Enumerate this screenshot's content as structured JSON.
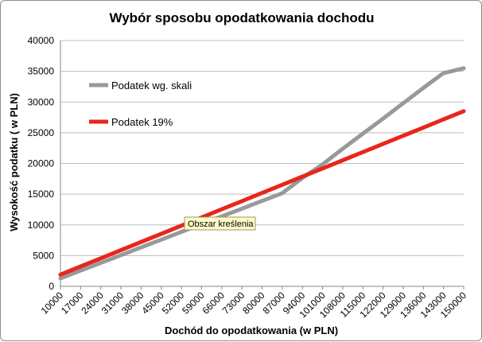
{
  "chart_data": {
    "type": "line",
    "title": "Wybór sposobu opodatkowania dochodu",
    "xlabel": "Dochód do opodatkowania (w PLN)",
    "ylabel": "Wysokość podatku  ( w PLN)",
    "ylim": [
      0,
      40000
    ],
    "yticks": [
      "0",
      "5000",
      "10000",
      "15000",
      "20000",
      "25000",
      "30000",
      "35000",
      "40000"
    ],
    "x": [
      "10000",
      "17000",
      "24000",
      "31000",
      "38000",
      "45000",
      "52000",
      "59000",
      "66000",
      "73000",
      "80000",
      "87000",
      "94000",
      "101000",
      "108000",
      "115000",
      "122000",
      "129000",
      "136000",
      "143000",
      "150000"
    ],
    "grid": true,
    "legend_position": "top-left",
    "series": [
      {
        "name": "Podatek wg. skali",
        "color": "#999999",
        "values": [
          1300,
          2560,
          3820,
          5080,
          6340,
          7600,
          8860,
          10120,
          11380,
          12640,
          13900,
          15160,
          17650,
          19850,
          22400,
          24850,
          27300,
          29800,
          32300,
          34700,
          35500
        ]
      },
      {
        "name": "Podatek 19%",
        "color": "#e8261b",
        "values": [
          1900,
          3230,
          4560,
          5890,
          7220,
          8550,
          9880,
          11210,
          12540,
          13870,
          15200,
          16530,
          17860,
          19190,
          20520,
          21850,
          23180,
          24510,
          25840,
          27170,
          28500
        ]
      }
    ],
    "annotations": [
      "Obszar kreślenia"
    ]
  },
  "tooltip": {
    "label": "Obszar kreślenia"
  }
}
